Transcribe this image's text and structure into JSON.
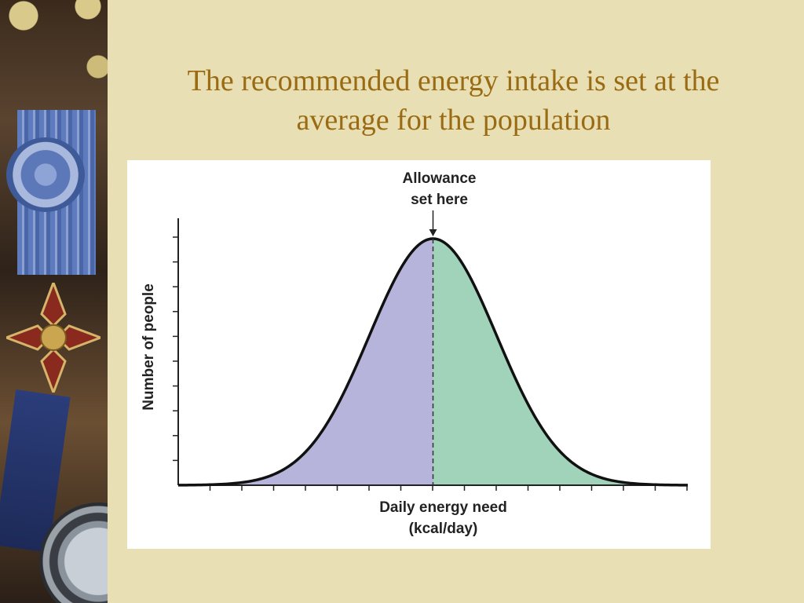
{
  "slide": {
    "title_line1": "The recommended energy intake is set at the",
    "title_line2": "average for the population",
    "title_color": "#9a6b12",
    "background_color": "#e8e0b4"
  },
  "chart_data": {
    "type": "area",
    "title": "",
    "xlabel_line1": "Daily energy need",
    "xlabel_line2": "(kcal/day)",
    "ylabel": "Number of people",
    "distribution": "normal",
    "mean": 0,
    "sd": 1,
    "xlim": [
      -4,
      4
    ],
    "ylim": [
      0,
      1
    ],
    "peak": 1.0,
    "x_tick_count": 16,
    "y_tick_count": 10,
    "annotation": {
      "line1": "Allowance",
      "line2": "set here",
      "x": 0
    },
    "series": [
      {
        "range": "below mean",
        "x": [
          -4,
          0
        ],
        "color": "#b6b4db"
      },
      {
        "range": "above mean",
        "x": [
          0,
          4
        ],
        "color": "#a1d3bb"
      }
    ],
    "grid": false
  }
}
